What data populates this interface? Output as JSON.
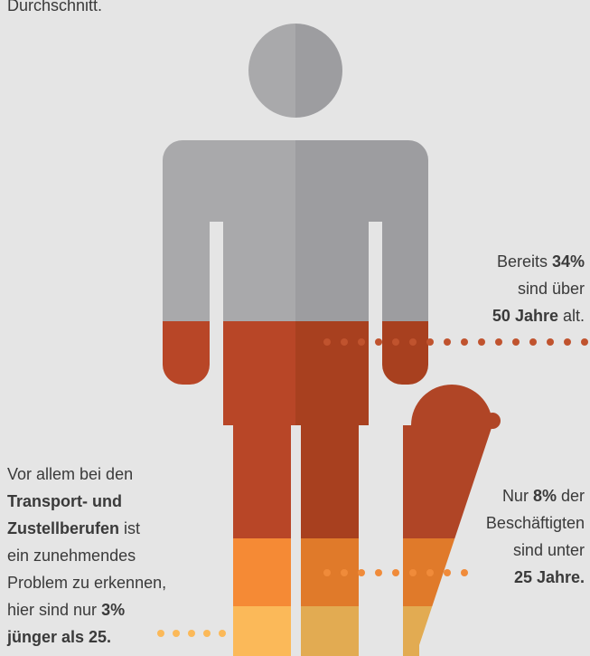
{
  "header_text": "Durchschnitt.",
  "annotations": [
    {
      "align": "right",
      "lines": [
        [
          {
            "text": "Bereits "
          },
          {
            "text": "34%",
            "bold": true
          }
        ],
        [
          {
            "text": "sind über"
          }
        ],
        [
          {
            "text": "50 Jahre",
            "bold": true
          },
          {
            "text": " alt."
          }
        ]
      ]
    },
    {
      "align": "right",
      "lines": [
        [
          {
            "text": "Nur "
          },
          {
            "text": "8%",
            "bold": true
          },
          {
            "text": " der"
          }
        ],
        [
          {
            "text": "Beschäftigten"
          }
        ],
        [
          {
            "text": "sind unter"
          }
        ],
        [
          {
            "text": "25 Jahre.",
            "bold": true
          }
        ]
      ]
    },
    {
      "align": "left",
      "lines": [
        [
          {
            "text": "Vor allem bei den"
          }
        ],
        [
          {
            "text": "Transport- und",
            "bold": true
          }
        ],
        [
          {
            "text": "Zustellberufen",
            "bold": true
          },
          {
            "text": " ist"
          }
        ],
        [
          {
            "text": "ein zunehmendes"
          }
        ],
        [
          {
            "text": "Problem zu erkennen,"
          }
        ],
        [
          {
            "text": "hier sind nur "
          },
          {
            "text": "3%",
            "bold": true
          }
        ],
        [
          {
            "text": "jünger als 25.",
            "bold": true
          }
        ]
      ]
    }
  ]
}
